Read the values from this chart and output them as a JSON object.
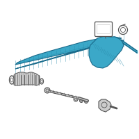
{
  "background_color": "#ffffff",
  "blue": "#3ba8c8",
  "blue_dark": "#2a8aaa",
  "blue_edge": "#1a6a8a",
  "gray": "#999999",
  "gray_light": "#cccccc",
  "gray_mid": "#888888",
  "gray_dark": "#555555",
  "figsize": [
    2.0,
    2.0
  ],
  "dpi": 100
}
